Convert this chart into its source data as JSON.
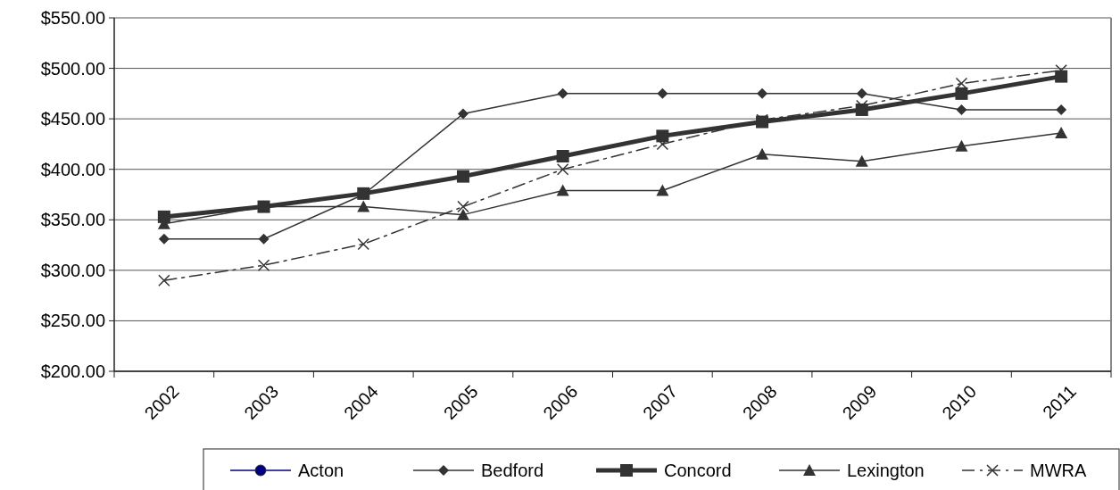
{
  "chart_data": {
    "type": "line",
    "categories": [
      "2002",
      "2003",
      "2004",
      "2005",
      "2006",
      "2007",
      "2008",
      "2009",
      "2010",
      "2011"
    ],
    "series": [
      {
        "name": "Acton",
        "color": "#000080",
        "marker": "circle",
        "values": [
          null,
          null,
          null,
          null,
          null,
          null,
          null,
          null,
          null,
          null
        ]
      },
      {
        "name": "Bedford",
        "color": "#333333",
        "marker": "diamond",
        "values": [
          331,
          331,
          375,
          455,
          475,
          475,
          475,
          475,
          459,
          459
        ]
      },
      {
        "name": "Concord",
        "color": "#333333",
        "marker": "square",
        "values": [
          353,
          363,
          376,
          393,
          413,
          433,
          447,
          459,
          475,
          492
        ]
      },
      {
        "name": "Lexington",
        "color": "#333333",
        "marker": "triangle",
        "values": [
          346,
          363,
          363,
          355,
          379,
          379,
          415,
          408,
          423,
          436
        ]
      },
      {
        "name": "MWRA",
        "color": "#333333",
        "marker": "cross",
        "line_style": "dashdot",
        "values": [
          290,
          305,
          326,
          363,
          400,
          425,
          449,
          463,
          485,
          498
        ]
      }
    ],
    "ylim": [
      200,
      550
    ],
    "yticks": [
      {
        "value": 200,
        "label": "$200.00"
      },
      {
        "value": 250,
        "label": "$250.00"
      },
      {
        "value": 300,
        "label": "$300.00"
      },
      {
        "value": 350,
        "label": "$350.00"
      },
      {
        "value": 400,
        "label": "$400.00"
      },
      {
        "value": 450,
        "label": "$450.00"
      },
      {
        "value": 500,
        "label": "$500.00"
      },
      {
        "value": 550,
        "label": "$550.00"
      }
    ],
    "grid": "y",
    "legend": "bottom"
  }
}
